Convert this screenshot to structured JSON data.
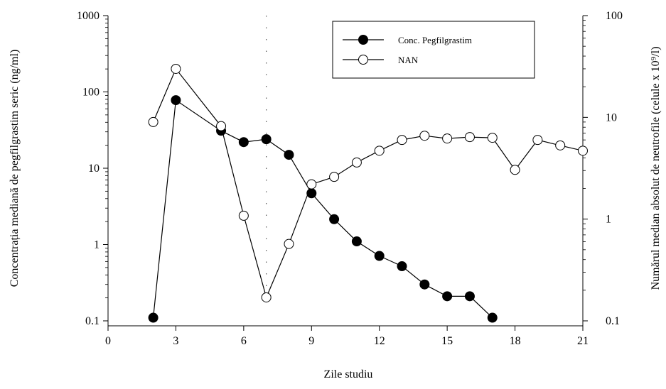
{
  "chart_data": {
    "type": "line",
    "title": "",
    "xlabel": "Zile studiu",
    "ylabel_left": "Concentrația mediană de pegfilgrastim seric (ng/ml)",
    "ylabel_right": "Numărul median absolut de neutrofile (celule x 10⁹/l)",
    "xlim": [
      0,
      21
    ],
    "x_ticks": [
      0,
      3,
      6,
      9,
      12,
      15,
      18,
      21
    ],
    "y_left_scale": "log",
    "y_left_lim": [
      0.1,
      1000
    ],
    "y_left_tick_labels": [
      "0.1",
      "1",
      "10",
      "100",
      "1000"
    ],
    "y_right_scale": "log",
    "y_right_lim": [
      0.1,
      100
    ],
    "y_right_tick_labels": [
      "0.1",
      "1",
      "10",
      "100"
    ],
    "grid": false,
    "reference_line_x": 7,
    "legend_position": "top-right",
    "series": [
      {
        "name": "Conc. Pegfilgrastim",
        "axis": "left",
        "marker": "filled-circle",
        "x": [
          2,
          3,
          5,
          6,
          7,
          8,
          9,
          10,
          11,
          12,
          13,
          14,
          15,
          16,
          17
        ],
        "values": [
          0.11,
          78,
          31,
          22,
          24,
          15,
          4.7,
          2.15,
          1.1,
          0.71,
          0.52,
          0.3,
          0.21,
          0.21,
          0.11
        ]
      },
      {
        "name": "NAN",
        "axis": "right",
        "marker": "open-circle",
        "x": [
          2,
          3,
          5,
          6,
          7,
          8,
          9,
          10,
          11,
          12,
          13,
          14,
          15,
          16,
          17,
          18,
          19,
          20,
          21
        ],
        "values": [
          9.0,
          30.0,
          8.2,
          1.08,
          0.17,
          0.57,
          2.2,
          2.6,
          3.6,
          4.7,
          6.0,
          6.6,
          6.2,
          6.4,
          6.3,
          3.05,
          6.0,
          5.3,
          4.7
        ]
      }
    ]
  }
}
